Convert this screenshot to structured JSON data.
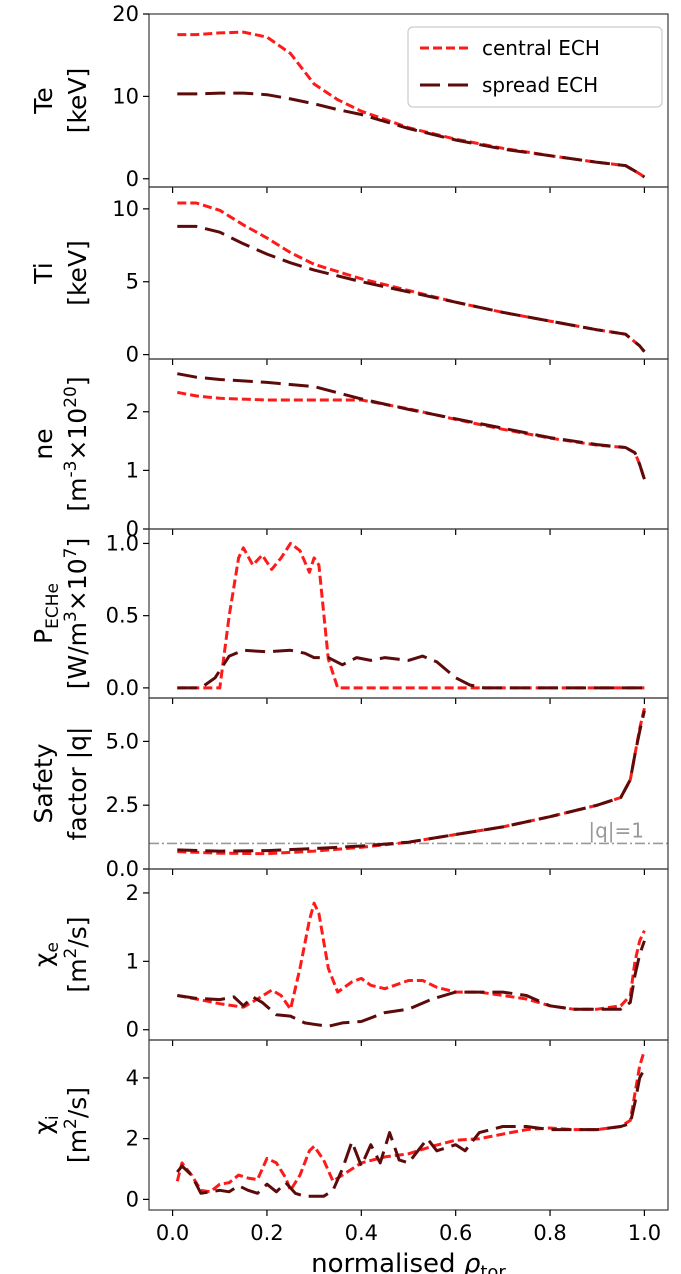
{
  "legend": [
    {
      "label": "central ECH",
      "color": "#ff1a1a",
      "dash": "short-dash"
    },
    {
      "label": "spread ECH",
      "color": "#5c0a0a",
      "dash": "long-dash"
    }
  ],
  "xaxis": {
    "label_main": "normalised ",
    "label_symbol": "ρ",
    "label_sub": "tor",
    "range": [
      -0.05,
      1.05
    ],
    "ticks": [
      0.0,
      0.2,
      0.4,
      0.6,
      0.8,
      1.0
    ],
    "tick_labels": [
      "0.0",
      "0.2",
      "0.4",
      "0.6",
      "0.8",
      "1.0"
    ]
  },
  "chart_data": [
    {
      "type": "line",
      "ylabel_lines": [
        "Te",
        "[keV]"
      ],
      "ylim": [
        -1,
        20
      ],
      "yticks": [
        0,
        10,
        20
      ],
      "ytick_labels": [
        "0",
        "10",
        "20"
      ],
      "series": [
        {
          "name": "central ECH",
          "x": [
            0.01,
            0.05,
            0.1,
            0.15,
            0.2,
            0.25,
            0.3,
            0.35,
            0.4,
            0.5,
            0.6,
            0.7,
            0.8,
            0.9,
            0.96,
            0.99,
            1.0
          ],
          "y": [
            17.5,
            17.5,
            17.7,
            17.8,
            17.2,
            15.2,
            11.5,
            9.6,
            8.2,
            6.2,
            4.8,
            3.7,
            2.8,
            2.0,
            1.6,
            0.6,
            0.2
          ]
        },
        {
          "name": "spread ECH",
          "x": [
            0.01,
            0.05,
            0.1,
            0.15,
            0.2,
            0.25,
            0.3,
            0.35,
            0.4,
            0.5,
            0.6,
            0.7,
            0.8,
            0.9,
            0.96,
            0.99,
            1.0
          ],
          "y": [
            10.3,
            10.3,
            10.4,
            10.4,
            10.2,
            9.7,
            9.1,
            8.4,
            7.8,
            6.1,
            4.7,
            3.6,
            2.8,
            2.0,
            1.6,
            0.6,
            0.2
          ]
        }
      ]
    },
    {
      "type": "line",
      "ylabel_lines": [
        "Ti",
        "[keV]"
      ],
      "ylim": [
        -0.3,
        11.5
      ],
      "yticks": [
        0,
        5,
        10
      ],
      "ytick_labels": [
        "0",
        "5",
        "10"
      ],
      "series": [
        {
          "name": "central ECH",
          "x": [
            0.01,
            0.05,
            0.1,
            0.15,
            0.2,
            0.25,
            0.3,
            0.4,
            0.5,
            0.6,
            0.7,
            0.8,
            0.9,
            0.96,
            0.99,
            1.0
          ],
          "y": [
            10.4,
            10.4,
            9.9,
            8.9,
            8.0,
            7.0,
            6.2,
            5.2,
            4.4,
            3.6,
            2.9,
            2.3,
            1.7,
            1.4,
            0.6,
            0.2
          ]
        },
        {
          "name": "spread ECH",
          "x": [
            0.01,
            0.05,
            0.1,
            0.15,
            0.2,
            0.25,
            0.3,
            0.4,
            0.5,
            0.6,
            0.7,
            0.8,
            0.9,
            0.96,
            0.99,
            1.0
          ],
          "y": [
            8.8,
            8.8,
            8.4,
            7.6,
            6.9,
            6.3,
            5.8,
            5.0,
            4.3,
            3.6,
            2.9,
            2.3,
            1.7,
            1.4,
            0.6,
            0.2
          ]
        }
      ]
    },
    {
      "type": "line",
      "ylabel_lines": [
        "ne",
        "[m^-3×10^20]"
      ],
      "ylim": [
        0,
        2.9
      ],
      "yticks": [
        0,
        1,
        2
      ],
      "ytick_labels": [
        "0",
        "1",
        "2"
      ],
      "series": [
        {
          "name": "central ECH",
          "x": [
            0.01,
            0.05,
            0.1,
            0.2,
            0.3,
            0.4,
            0.5,
            0.6,
            0.7,
            0.8,
            0.9,
            0.96,
            0.98,
            0.99,
            1.0
          ],
          "y": [
            2.33,
            2.27,
            2.23,
            2.2,
            2.2,
            2.2,
            2.05,
            1.87,
            1.7,
            1.55,
            1.43,
            1.39,
            1.3,
            1.1,
            0.85
          ]
        },
        {
          "name": "spread ECH",
          "x": [
            0.01,
            0.05,
            0.1,
            0.2,
            0.3,
            0.4,
            0.5,
            0.6,
            0.7,
            0.8,
            0.9,
            0.96,
            0.98,
            0.99,
            1.0
          ],
          "y": [
            2.65,
            2.59,
            2.55,
            2.5,
            2.43,
            2.22,
            2.04,
            1.88,
            1.72,
            1.56,
            1.44,
            1.39,
            1.3,
            1.1,
            0.85
          ]
        }
      ]
    },
    {
      "type": "line",
      "ylabel_lines": [
        "P_ECHe",
        "[W/m^3×10^7]"
      ],
      "ylim": [
        -0.07,
        1.1
      ],
      "yticks": [
        0.0,
        0.5,
        1.0
      ],
      "ytick_labels": [
        "0.0",
        "0.5",
        "1.0"
      ],
      "series": [
        {
          "name": "central ECH",
          "x": [
            0.01,
            0.1,
            0.12,
            0.14,
            0.15,
            0.17,
            0.19,
            0.21,
            0.23,
            0.25,
            0.27,
            0.29,
            0.3,
            0.31,
            0.33,
            0.35,
            0.4,
            1.0
          ],
          "y": [
            0,
            0,
            0.5,
            0.9,
            0.97,
            0.85,
            0.92,
            0.82,
            0.9,
            1.0,
            0.95,
            0.8,
            0.9,
            0.85,
            0.2,
            0.0,
            0.0,
            0.0
          ]
        },
        {
          "name": "spread ECH",
          "x": [
            0.01,
            0.06,
            0.09,
            0.12,
            0.15,
            0.2,
            0.25,
            0.28,
            0.3,
            0.33,
            0.36,
            0.39,
            0.42,
            0.45,
            0.5,
            0.53,
            0.56,
            0.6,
            0.63,
            0.66,
            0.7,
            1.0
          ],
          "y": [
            0,
            0,
            0.07,
            0.22,
            0.26,
            0.25,
            0.26,
            0.24,
            0.21,
            0.21,
            0.16,
            0.21,
            0.19,
            0.21,
            0.19,
            0.22,
            0.18,
            0.07,
            0.02,
            0.0,
            0.0,
            0.0
          ]
        }
      ]
    },
    {
      "type": "line",
      "ylabel_lines": [
        "Safety",
        "factor |q|"
      ],
      "ylim": [
        0,
        6.7
      ],
      "yticks": [
        0.0,
        2.5,
        5.0
      ],
      "ytick_labels": [
        "0.0",
        "2.5",
        "5.0"
      ],
      "reference_line": {
        "y": 1.0,
        "label": "|q|=1",
        "color": "#999999"
      },
      "series": [
        {
          "name": "central ECH",
          "x": [
            0.01,
            0.1,
            0.2,
            0.3,
            0.4,
            0.5,
            0.6,
            0.7,
            0.8,
            0.9,
            0.95,
            0.97,
            0.98,
            0.99,
            1.0
          ],
          "y": [
            0.68,
            0.62,
            0.6,
            0.7,
            0.85,
            1.05,
            1.35,
            1.65,
            2.05,
            2.5,
            2.8,
            3.5,
            4.5,
            5.5,
            6.3
          ]
        },
        {
          "name": "spread ECH",
          "x": [
            0.01,
            0.1,
            0.2,
            0.3,
            0.4,
            0.5,
            0.6,
            0.7,
            0.8,
            0.9,
            0.95,
            0.97,
            0.98,
            0.99,
            1.0
          ],
          "y": [
            0.75,
            0.7,
            0.72,
            0.8,
            0.9,
            1.05,
            1.35,
            1.65,
            2.05,
            2.5,
            2.8,
            3.5,
            4.5,
            5.4,
            6.2
          ]
        }
      ]
    },
    {
      "type": "line",
      "ylabel_lines": [
        "χ_e",
        "[m^2/s]"
      ],
      "ylim": [
        -0.15,
        2.35
      ],
      "yticks": [
        0,
        1,
        2
      ],
      "ytick_labels": [
        "0",
        "1",
        "2"
      ],
      "series": [
        {
          "name": "central ECH",
          "x": [
            0.01,
            0.05,
            0.1,
            0.15,
            0.18,
            0.21,
            0.23,
            0.25,
            0.27,
            0.29,
            0.3,
            0.31,
            0.33,
            0.35,
            0.38,
            0.4,
            0.42,
            0.45,
            0.5,
            0.53,
            0.56,
            0.6,
            0.65,
            0.7,
            0.75,
            0.8,
            0.85,
            0.9,
            0.95,
            0.97,
            0.98,
            0.99,
            1.0
          ],
          "y": [
            0.5,
            0.45,
            0.38,
            0.33,
            0.45,
            0.58,
            0.5,
            0.3,
            0.9,
            1.6,
            1.85,
            1.7,
            0.9,
            0.55,
            0.7,
            0.75,
            0.65,
            0.6,
            0.72,
            0.72,
            0.62,
            0.55,
            0.55,
            0.5,
            0.45,
            0.35,
            0.3,
            0.3,
            0.35,
            0.5,
            1.0,
            1.3,
            1.45
          ]
        },
        {
          "name": "spread ECH",
          "x": [
            0.01,
            0.05,
            0.1,
            0.13,
            0.15,
            0.17,
            0.19,
            0.22,
            0.25,
            0.28,
            0.3,
            0.33,
            0.36,
            0.4,
            0.45,
            0.5,
            0.55,
            0.6,
            0.65,
            0.7,
            0.75,
            0.8,
            0.85,
            0.9,
            0.95,
            0.97,
            0.98,
            0.99,
            1.0
          ],
          "y": [
            0.5,
            0.46,
            0.44,
            0.48,
            0.35,
            0.48,
            0.4,
            0.22,
            0.2,
            0.1,
            0.08,
            0.05,
            0.1,
            0.12,
            0.25,
            0.3,
            0.45,
            0.55,
            0.55,
            0.55,
            0.5,
            0.35,
            0.3,
            0.3,
            0.3,
            0.4,
            0.8,
            1.1,
            1.3
          ]
        }
      ]
    },
    {
      "type": "line",
      "ylabel_lines": [
        "χ_i",
        "[m^2/s]"
      ],
      "ylim": [
        -0.35,
        5.25
      ],
      "yticks": [
        0,
        2,
        4
      ],
      "ytick_labels": [
        "0",
        "2",
        "4"
      ],
      "series": [
        {
          "name": "central ECH",
          "x": [
            0.01,
            0.02,
            0.04,
            0.06,
            0.08,
            0.1,
            0.12,
            0.14,
            0.16,
            0.18,
            0.2,
            0.22,
            0.24,
            0.25,
            0.27,
            0.29,
            0.3,
            0.32,
            0.34,
            0.36,
            0.38,
            0.4,
            0.45,
            0.5,
            0.55,
            0.6,
            0.65,
            0.7,
            0.75,
            0.8,
            0.85,
            0.9,
            0.95,
            0.97,
            0.98,
            0.99,
            1.0
          ],
          "y": [
            0.6,
            1.2,
            0.8,
            0.3,
            0.25,
            0.5,
            0.55,
            0.8,
            0.7,
            0.65,
            1.35,
            1.2,
            0.7,
            0.3,
            0.8,
            1.6,
            1.75,
            1.3,
            0.6,
            0.8,
            1.0,
            1.2,
            1.4,
            1.5,
            1.75,
            1.95,
            2.0,
            2.15,
            2.3,
            2.35,
            2.3,
            2.3,
            2.4,
            2.6,
            3.5,
            4.4,
            4.9
          ]
        },
        {
          "name": "spread ECH",
          "x": [
            0.01,
            0.02,
            0.04,
            0.06,
            0.08,
            0.1,
            0.12,
            0.14,
            0.16,
            0.18,
            0.2,
            0.22,
            0.24,
            0.26,
            0.28,
            0.3,
            0.32,
            0.34,
            0.36,
            0.38,
            0.4,
            0.42,
            0.44,
            0.46,
            0.48,
            0.5,
            0.52,
            0.54,
            0.56,
            0.58,
            0.6,
            0.62,
            0.65,
            0.7,
            0.75,
            0.8,
            0.85,
            0.9,
            0.95,
            0.97,
            0.98,
            0.99,
            1.0
          ],
          "y": [
            0.9,
            1.1,
            0.8,
            0.2,
            0.25,
            0.3,
            0.25,
            0.45,
            0.3,
            0.2,
            0.5,
            0.25,
            0.55,
            0.2,
            0.1,
            0.1,
            0.1,
            0.3,
            1.0,
            1.9,
            1.1,
            1.8,
            1.2,
            2.2,
            1.3,
            1.2,
            1.6,
            2.0,
            1.6,
            1.7,
            1.8,
            1.6,
            2.2,
            2.4,
            2.4,
            2.3,
            2.3,
            2.3,
            2.4,
            2.5,
            3.2,
            4.0,
            4.3
          ]
        }
      ]
    }
  ]
}
